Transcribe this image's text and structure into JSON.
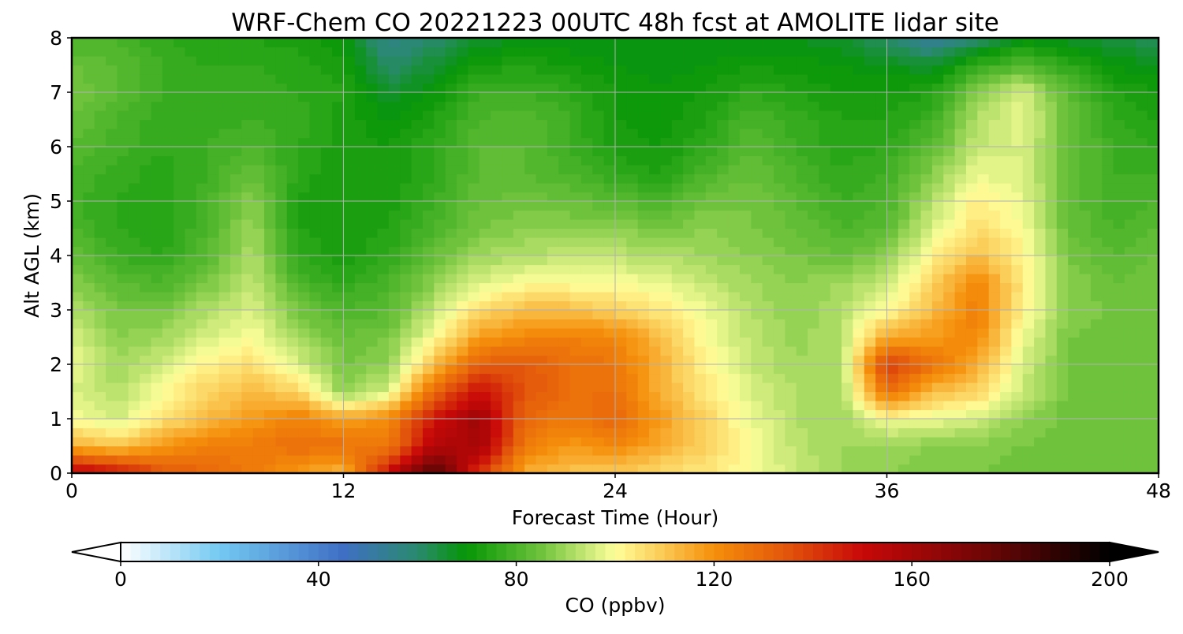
{
  "chart_data": {
    "type": "heatmap",
    "title": "WRF-Chem CO  20221223 00UTC 48h fcst at AMOLITE lidar site",
    "xlabel": "Forecast Time (Hour)",
    "ylabel": "Alt AGL (km)",
    "xlim": [
      0,
      48
    ],
    "ylim": [
      0,
      8
    ],
    "xticks": [
      0,
      12,
      24,
      36,
      48
    ],
    "yticks": [
      0,
      1,
      2,
      3,
      4,
      5,
      6,
      7,
      8
    ],
    "grid": true,
    "colorbar": {
      "label": "CO  (ppbv)",
      "range": [
        0,
        200
      ],
      "ticks": [
        0,
        40,
        80,
        120,
        160,
        200
      ],
      "extend": "both",
      "stops": [
        {
          "v": 0,
          "c": "#ffffff"
        },
        {
          "v": 20,
          "c": "#73c9f2"
        },
        {
          "v": 45,
          "c": "#3f6fc4"
        },
        {
          "v": 60,
          "c": "#2a8a6e"
        },
        {
          "v": 70,
          "c": "#069606"
        },
        {
          "v": 85,
          "c": "#6fc33c"
        },
        {
          "v": 100,
          "c": "#ffff9a"
        },
        {
          "v": 120,
          "c": "#f58f0a"
        },
        {
          "v": 135,
          "c": "#e2540c"
        },
        {
          "v": 150,
          "c": "#c80808"
        },
        {
          "v": 175,
          "c": "#6e0606"
        },
        {
          "v": 200,
          "c": "#000000"
        }
      ]
    },
    "heights_km": [
      0,
      0.5,
      1,
      1.5,
      2,
      2.5,
      3,
      3.5,
      4,
      4.5,
      5,
      5.5,
      6,
      6.5,
      7,
      7.5,
      8
    ],
    "times_h": [
      0,
      2,
      4,
      6,
      8,
      10,
      12,
      14,
      16,
      18,
      20,
      22,
      24,
      26,
      28,
      30,
      32,
      34,
      36,
      38,
      40,
      42,
      44,
      46,
      48
    ],
    "values_ppbv": [
      [
        155,
        150,
        135,
        130,
        125,
        118,
        112,
        150,
        185,
        140,
        115,
        110,
        110,
        106,
        104,
        100,
        94,
        90,
        88,
        87,
        86,
        85,
        85,
        85,
        86
      ],
      [
        115,
        110,
        118,
        125,
        125,
        128,
        128,
        125,
        155,
        160,
        125,
        118,
        122,
        115,
        108,
        100,
        93,
        90,
        89,
        88,
        87,
        86,
        85,
        85,
        86
      ],
      [
        100,
        95,
        105,
        112,
        118,
        124,
        116,
        122,
        148,
        162,
        130,
        125,
        130,
        118,
        108,
        98,
        92,
        90,
        100,
        98,
        95,
        88,
        85,
        85,
        86
      ],
      [
        96,
        92,
        100,
        108,
        112,
        108,
        88,
        96,
        130,
        150,
        135,
        128,
        128,
        114,
        104,
        96,
        92,
        90,
        128,
        112,
        108,
        94,
        85,
        85,
        86
      ],
      [
        98,
        90,
        95,
        102,
        106,
        96,
        86,
        88,
        112,
        132,
        134,
        128,
        126,
        114,
        102,
        94,
        90,
        92,
        140,
        128,
        115,
        96,
        86,
        85,
        86
      ],
      [
        96,
        88,
        90,
        96,
        100,
        90,
        84,
        86,
        100,
        118,
        122,
        124,
        122,
        112,
        100,
        93,
        89,
        92,
        116,
        118,
        122,
        98,
        86,
        85,
        86
      ],
      [
        92,
        86,
        86,
        92,
        96,
        86,
        80,
        82,
        94,
        106,
        112,
        112,
        108,
        104,
        98,
        92,
        88,
        92,
        100,
        112,
        124,
        102,
        88,
        85,
        86
      ],
      [
        88,
        82,
        80,
        86,
        94,
        80,
        76,
        80,
        88,
        96,
        100,
        100,
        100,
        98,
        94,
        90,
        88,
        90,
        94,
        108,
        122,
        104,
        88,
        84,
        86
      ],
      [
        84,
        78,
        76,
        82,
        92,
        76,
        73,
        76,
        84,
        90,
        92,
        94,
        93,
        92,
        90,
        88,
        86,
        84,
        88,
        102,
        112,
        102,
        86,
        82,
        84
      ],
      [
        80,
        76,
        74,
        80,
        90,
        74,
        72,
        74,
        80,
        86,
        88,
        88,
        88,
        86,
        88,
        86,
        84,
        80,
        82,
        96,
        106,
        100,
        84,
        80,
        82
      ],
      [
        78,
        76,
        74,
        80,
        88,
        74,
        72,
        73,
        78,
        84,
        85,
        84,
        82,
        80,
        85,
        86,
        82,
        78,
        80,
        92,
        103,
        98,
        84,
        78,
        80
      ],
      [
        80,
        77,
        75,
        78,
        84,
        75,
        72,
        72,
        76,
        82,
        82,
        80,
        76,
        74,
        80,
        84,
        80,
        76,
        78,
        88,
        98,
        96,
        84,
        78,
        78
      ],
      [
        82,
        79,
        76,
        78,
        80,
        76,
        73,
        72,
        76,
        82,
        82,
        78,
        73,
        72,
        76,
        82,
        78,
        75,
        76,
        82,
        94,
        96,
        84,
        78,
        76
      ],
      [
        84,
        80,
        77,
        77,
        78,
        77,
        73,
        70,
        74,
        80,
        82,
        78,
        72,
        71,
        74,
        80,
        77,
        74,
        74,
        78,
        92,
        98,
        84,
        76,
        74
      ],
      [
        86,
        82,
        78,
        76,
        77,
        76,
        74,
        66,
        70,
        78,
        78,
        76,
        72,
        70,
        72,
        76,
        74,
        72,
        72,
        74,
        88,
        96,
        82,
        74,
        72
      ],
      [
        84,
        82,
        78,
        76,
        76,
        75,
        73,
        60,
        66,
        72,
        74,
        72,
        70,
        69,
        70,
        72,
        71,
        70,
        68,
        66,
        76,
        82,
        76,
        70,
        68
      ],
      [
        80,
        80,
        76,
        74,
        74,
        73,
        70,
        56,
        60,
        66,
        68,
        68,
        68,
        68,
        68,
        68,
        68,
        66,
        60,
        52,
        60,
        68,
        66,
        64,
        62
      ]
    ]
  }
}
